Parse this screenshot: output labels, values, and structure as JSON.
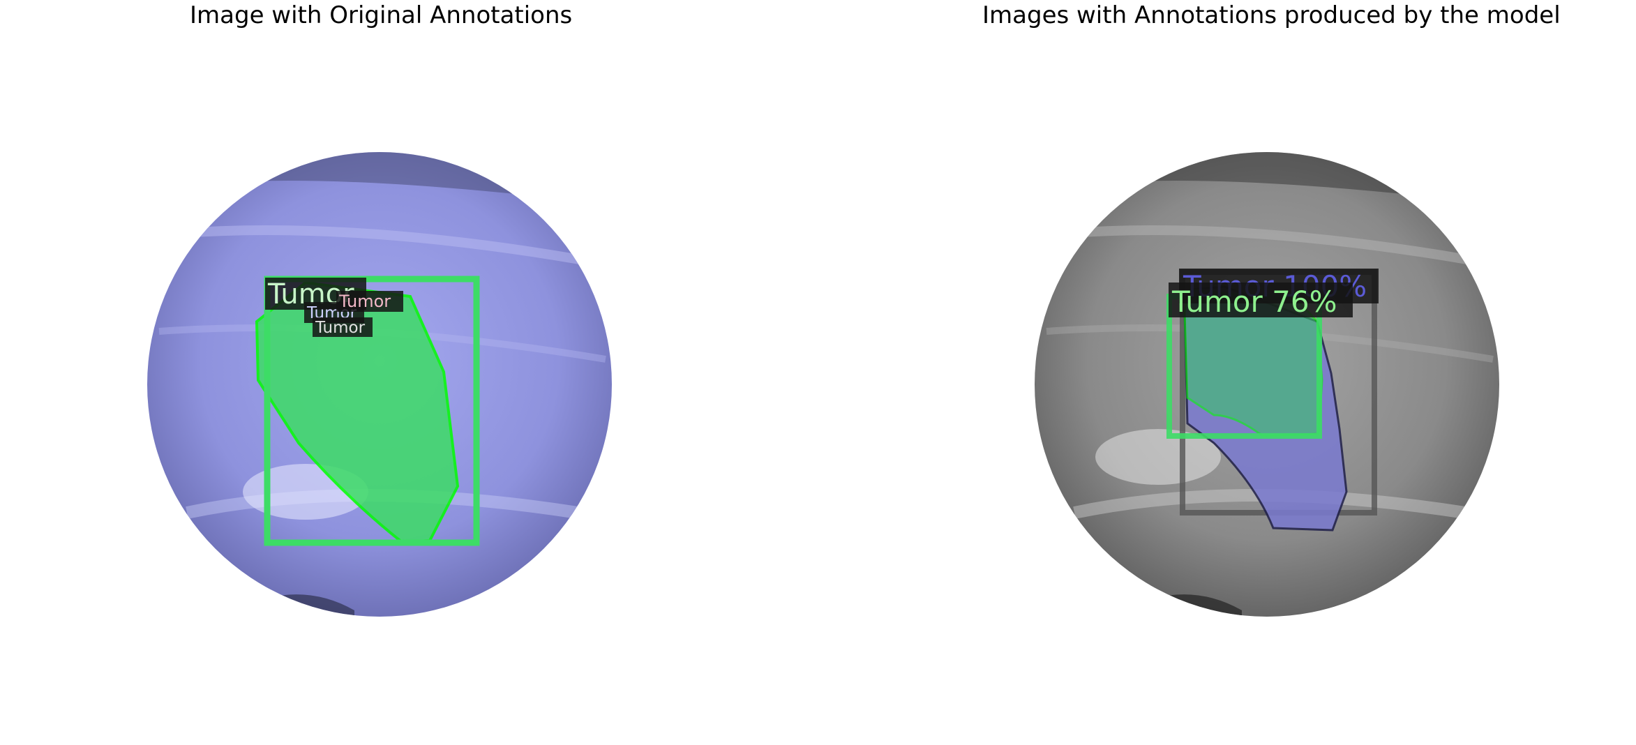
{
  "panels": {
    "left": {
      "title": "Image with Original Annotations",
      "labels": [
        "Tumor",
        "Tumor",
        "Tumor",
        "Tumor"
      ],
      "colors": {
        "tint": "#8e92dd",
        "mask": "#3ddc66",
        "outline": "#00ff00"
      }
    },
    "right": {
      "title": "Images with Annotations produced by the model",
      "labels": [
        "Tumor 100%",
        "Tumor 76%"
      ],
      "colors": {
        "tint": "#8a8a8a",
        "mask_model": "#7a7ad0",
        "mask_green": "#3ac46a",
        "box_gray": "#555555"
      }
    }
  }
}
